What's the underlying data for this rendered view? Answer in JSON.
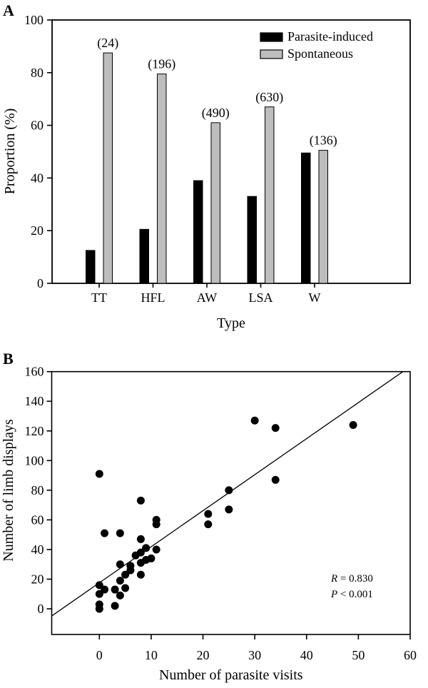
{
  "panels": [
    {
      "label": "A",
      "chart_data": {
        "type": "bar",
        "title": "",
        "xlabel": "Type",
        "ylabel": "Proportion (%)",
        "ylim": [
          0,
          100
        ],
        "yticks": [
          0,
          20,
          40,
          60,
          80,
          100
        ],
        "categories": [
          "TT",
          "HFL",
          "AW",
          "LSA",
          "W"
        ],
        "series": [
          {
            "name": "Parasite-induced",
            "color": "#000000",
            "values": [
              12.5,
              20.5,
              39,
              33,
              49.5
            ]
          },
          {
            "name": "Spontaneous",
            "color": "#bdbdbd",
            "values": [
              87.5,
              79.5,
              61,
              67,
              50.5
            ]
          }
        ],
        "bar_annotations": [
          "(24)",
          "(196)",
          "(490)",
          "(630)",
          "(136)"
        ],
        "legend_position": "top-right",
        "grid": false
      }
    },
    {
      "label": "B",
      "chart_data": {
        "type": "scatter",
        "title": "",
        "xlabel": "Number of parasite visits",
        "ylabel": "Number of limb displays",
        "xlim": [
          -9.2,
          60
        ],
        "ylim": [
          -17.3,
          160
        ],
        "xticks": [
          0,
          10,
          20,
          30,
          40,
          50,
          60
        ],
        "yticks": [
          0,
          20,
          40,
          60,
          80,
          100,
          120,
          140,
          160
        ],
        "points": [
          [
            0,
            91
          ],
          [
            0,
            16
          ],
          [
            0,
            10
          ],
          [
            0,
            3
          ],
          [
            0,
            0
          ],
          [
            1,
            51
          ],
          [
            1,
            13
          ],
          [
            3,
            13
          ],
          [
            3,
            2
          ],
          [
            4,
            51
          ],
          [
            4,
            30
          ],
          [
            4,
            19
          ],
          [
            4,
            9
          ],
          [
            5,
            23
          ],
          [
            5,
            14
          ],
          [
            6,
            26
          ],
          [
            6,
            29
          ],
          [
            7,
            36
          ],
          [
            8,
            31
          ],
          [
            8,
            47
          ],
          [
            8,
            38
          ],
          [
            8,
            73
          ],
          [
            8,
            23
          ],
          [
            9,
            41
          ],
          [
            9,
            33
          ],
          [
            10,
            34
          ],
          [
            11,
            60
          ],
          [
            11,
            57
          ],
          [
            11,
            40
          ],
          [
            21,
            64
          ],
          [
            21,
            57
          ],
          [
            25,
            80
          ],
          [
            25,
            67
          ],
          [
            30,
            127
          ],
          [
            34,
            122
          ],
          [
            34,
            87
          ],
          [
            49,
            124
          ]
        ],
        "regression_line": {
          "x1": -9.2,
          "y1": -4.8,
          "x2": 58.6,
          "y2": 160
        },
        "stats": [
          {
            "symbol": "R",
            "text": " = 0.830"
          },
          {
            "symbol": "P",
            "text": " < 0.001"
          }
        ],
        "grid": false
      }
    }
  ]
}
